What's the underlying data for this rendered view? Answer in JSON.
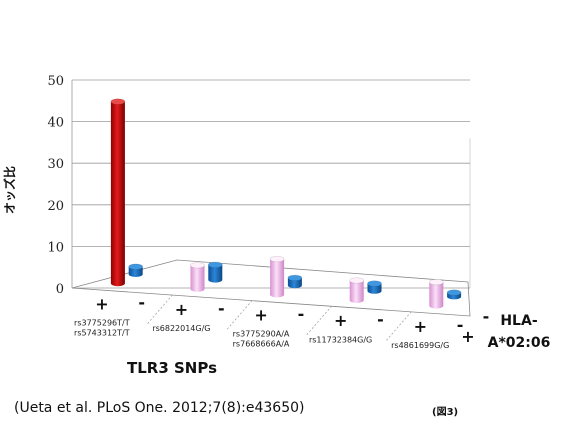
{
  "chart_data": {
    "type": "bar",
    "ylabel": "オッズ比",
    "yticks": [
      0,
      10,
      20,
      30,
      40,
      50
    ],
    "ylim": [
      0,
      50
    ],
    "xlabel": "TLR3 SNPs",
    "series_axis_label": "HLA-\nA*02:06",
    "series": [
      {
        "name": "+",
        "color": "#1f6fbf"
      },
      {
        "name": "-",
        "color": "#1f6fbf"
      }
    ],
    "groups": [
      {
        "label": [
          "rs3775296T/T",
          "rs5743312T/T"
        ],
        "bars": [
          {
            "hla": "+",
            "x_label": "+",
            "value": 46,
            "color": "#cc1111"
          },
          {
            "hla": "-",
            "x_label": "-",
            "value": 2,
            "color": "#1f6fbf"
          }
        ]
      },
      {
        "label": [
          "rs6822014G/G"
        ],
        "bars": [
          {
            "hla": "+",
            "x_label": "+",
            "value": 6,
            "color": "#f0b8ea"
          },
          {
            "hla": "-",
            "x_label": "-",
            "value": 4,
            "color": "#1f6fbf"
          }
        ]
      },
      {
        "label": [
          "rs3775290A/A",
          "rs7668666A/A"
        ],
        "bars": [
          {
            "hla": "+",
            "x_label": "+",
            "value": 9,
            "color": "#f0b8ea"
          },
          {
            "hla": "-",
            "x_label": "-",
            "value": 2,
            "color": "#1f6fbf"
          }
        ]
      },
      {
        "label": [
          "rs11732384G/G"
        ],
        "bars": [
          {
            "hla": "+",
            "x_label": "+",
            "value": 5,
            "color": "#f0b8ea"
          },
          {
            "hla": "-",
            "x_label": "-",
            "value": 2,
            "color": "#1f6fbf"
          }
        ]
      },
      {
        "label": [
          "rs4861699G/G"
        ],
        "bars": [
          {
            "hla": "+",
            "x_label": "+",
            "value": 6,
            "color": "#f0b8ea"
          },
          {
            "hla": "-",
            "x_label": "-",
            "value": 1,
            "color": "#1f6fbf"
          }
        ]
      }
    ],
    "grid": true
  },
  "source_text": "(Ueta et al. PLoS One. 2012;7(8):e43650)",
  "figure_label": "(図3)"
}
